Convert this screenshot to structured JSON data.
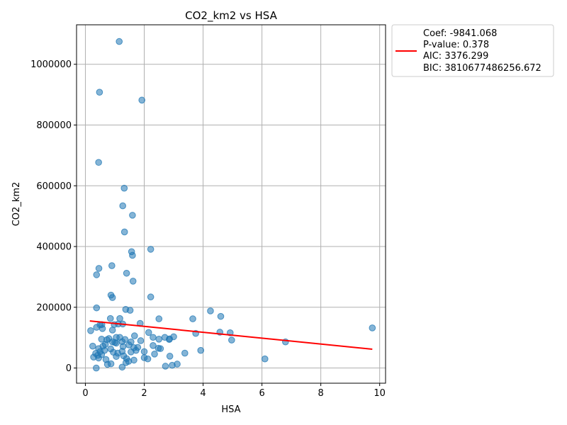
{
  "chart_data": {
    "type": "scatter",
    "title": "CO2_km2 vs HSA",
    "xlabel": "HSA",
    "ylabel": "CO2_km2",
    "xlim": [
      -0.3,
      10.2
    ],
    "ylim": [
      -50000,
      1130000
    ],
    "xticks": [
      0,
      2,
      4,
      6,
      8,
      10
    ],
    "xtick_labels": [
      "0",
      "2",
      "4",
      "6",
      "8",
      "10"
    ],
    "yticks": [
      0,
      200000,
      400000,
      600000,
      800000,
      1000000
    ],
    "ytick_labels": [
      "0",
      "200000",
      "400000",
      "600000",
      "800000",
      "1000000"
    ],
    "grid": true,
    "legend_position": "outside-top-right",
    "legend_lines": [
      "Coef: -9841.068",
      "P-value: 0.378",
      "AIC: 3376.299",
      "BIC: 3810677486256.672"
    ],
    "colors": {
      "points": "#1f77b4",
      "fit_line": "#ff0000"
    },
    "fit_line": {
      "x": [
        0.15,
        9.75
      ],
      "y": [
        155000,
        62000
      ]
    },
    "points": [
      [
        1.15,
        1075000
      ],
      [
        0.48,
        908000
      ],
      [
        1.92,
        882000
      ],
      [
        0.45,
        677000
      ],
      [
        1.32,
        592000
      ],
      [
        1.27,
        534000
      ],
      [
        1.6,
        503000
      ],
      [
        1.33,
        448000
      ],
      [
        2.22,
        391000
      ],
      [
        1.57,
        383000
      ],
      [
        1.6,
        371000
      ],
      [
        0.9,
        337000
      ],
      [
        0.46,
        328000
      ],
      [
        1.4,
        312000
      ],
      [
        0.38,
        307000
      ],
      [
        1.62,
        286000
      ],
      [
        0.87,
        240000
      ],
      [
        0.92,
        232000
      ],
      [
        2.22,
        234000
      ],
      [
        0.38,
        198000
      ],
      [
        1.37,
        193000
      ],
      [
        1.52,
        190000
      ],
      [
        4.25,
        188000
      ],
      [
        4.6,
        170000
      ],
      [
        0.85,
        163000
      ],
      [
        1.17,
        163000
      ],
      [
        2.5,
        162000
      ],
      [
        3.65,
        162000
      ],
      [
        0.5,
        142000
      ],
      [
        0.56,
        143000
      ],
      [
        0.98,
        143000
      ],
      [
        1.12,
        145000
      ],
      [
        1.27,
        145000
      ],
      [
        1.86,
        147000
      ],
      [
        0.38,
        134000
      ],
      [
        0.58,
        130000
      ],
      [
        0.92,
        125000
      ],
      [
        0.18,
        123000
      ],
      [
        2.15,
        117000
      ],
      [
        3.75,
        114000
      ],
      [
        4.57,
        118000
      ],
      [
        4.92,
        116000
      ],
      [
        9.75,
        132000
      ],
      [
        1.05,
        101000
      ],
      [
        1.17,
        101000
      ],
      [
        1.35,
        94000
      ],
      [
        1.67,
        106000
      ],
      [
        2.3,
        101000
      ],
      [
        2.5,
        95000
      ],
      [
        2.7,
        101000
      ],
      [
        2.86,
        96000
      ],
      [
        3.0,
        103000
      ],
      [
        4.97,
        92000
      ],
      [
        6.8,
        86000
      ],
      [
        0.55,
        95000
      ],
      [
        0.73,
        93000
      ],
      [
        0.8,
        97000
      ],
      [
        0.92,
        86000
      ],
      [
        1.0,
        84000
      ],
      [
        1.25,
        87000
      ],
      [
        1.55,
        86000
      ],
      [
        1.88,
        90000
      ],
      [
        2.85,
        94000
      ],
      [
        0.25,
        72000
      ],
      [
        0.45,
        64000
      ],
      [
        0.6,
        72000
      ],
      [
        0.68,
        78000
      ],
      [
        0.86,
        63000
      ],
      [
        1.05,
        82000
      ],
      [
        1.28,
        71000
      ],
      [
        1.48,
        76000
      ],
      [
        1.65,
        67000
      ],
      [
        1.78,
        68000
      ],
      [
        2.3,
        74000
      ],
      [
        2.48,
        65000
      ],
      [
        2.55,
        64000
      ],
      [
        0.35,
        48000
      ],
      [
        0.5,
        54000
      ],
      [
        0.65,
        58000
      ],
      [
        0.95,
        52000
      ],
      [
        1.1,
        49000
      ],
      [
        1.25,
        55000
      ],
      [
        1.55,
        53000
      ],
      [
        1.72,
        58000
      ],
      [
        2.0,
        54000
      ],
      [
        2.35,
        46000
      ],
      [
        3.38,
        49000
      ],
      [
        3.92,
        58000
      ],
      [
        0.28,
        36000
      ],
      [
        0.42,
        42000
      ],
      [
        0.55,
        44000
      ],
      [
        0.7,
        28000
      ],
      [
        1.05,
        38000
      ],
      [
        1.3,
        40000
      ],
      [
        1.4,
        31000
      ],
      [
        1.65,
        26000
      ],
      [
        2.0,
        34000
      ],
      [
        2.12,
        30000
      ],
      [
        2.87,
        39000
      ],
      [
        6.1,
        30000
      ],
      [
        0.45,
        33000
      ],
      [
        0.75,
        12000
      ],
      [
        0.87,
        14000
      ],
      [
        1.38,
        18000
      ],
      [
        1.47,
        22000
      ],
      [
        1.25,
        3000
      ],
      [
        0.37,
        0
      ],
      [
        2.72,
        6000
      ],
      [
        2.95,
        9000
      ],
      [
        3.12,
        13000
      ]
    ]
  }
}
